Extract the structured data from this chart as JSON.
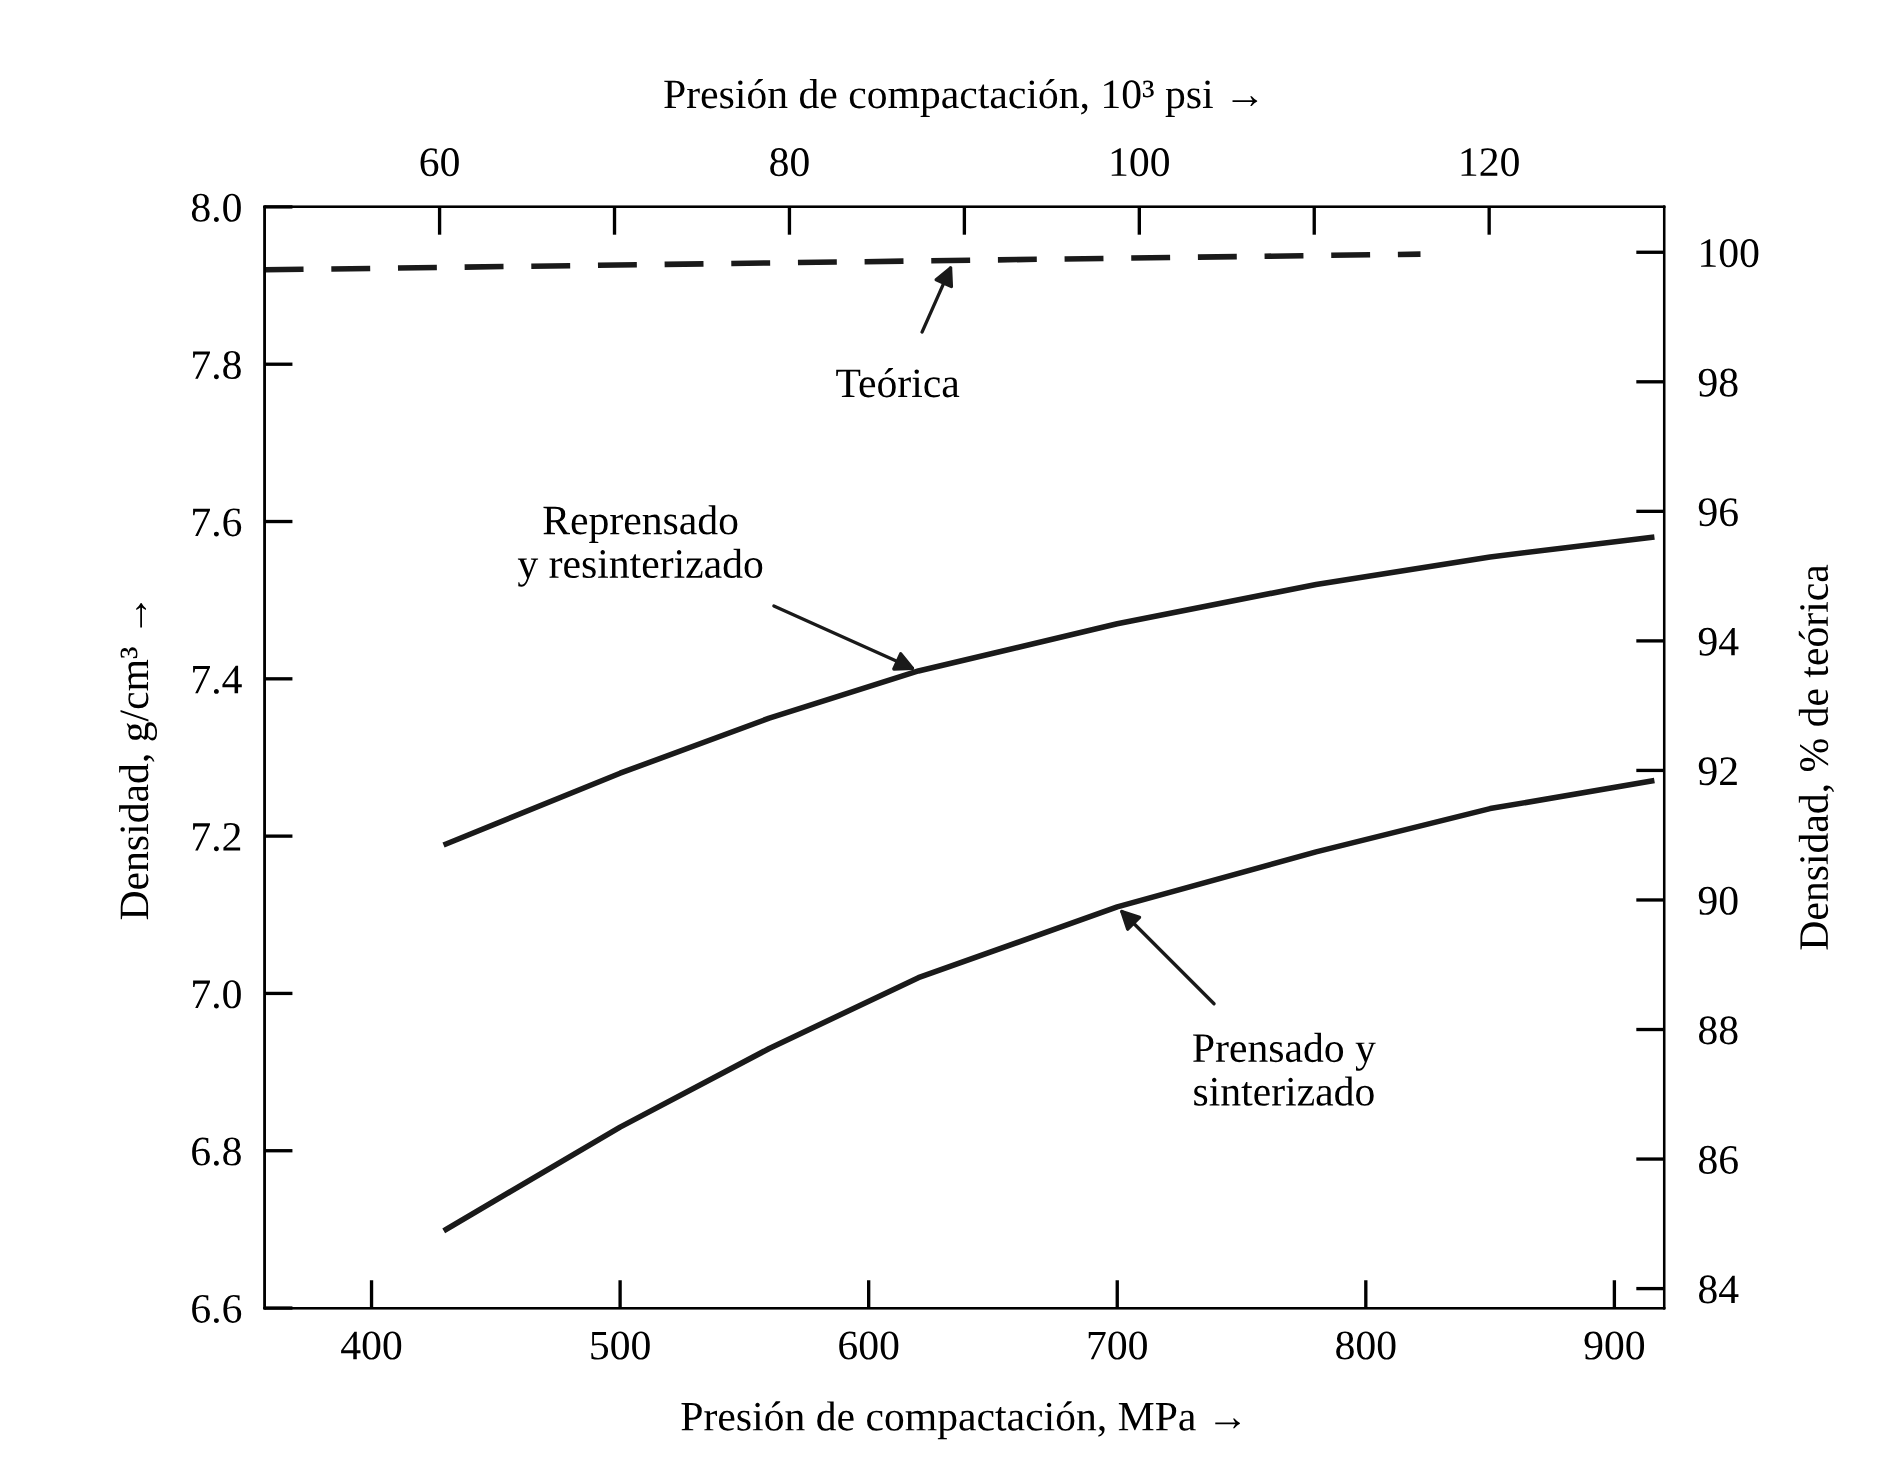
{
  "chart_data": {
    "type": "line",
    "xlabel": "Presión de compactación, MPa →",
    "x2label": "Presión de compactación, 10³ psi →",
    "ylabel": "Densidad, g/cm³ →",
    "y2label": "Densidad, % de teórica",
    "xlim": [
      357,
      920
    ],
    "xticks": [
      400,
      500,
      600,
      700,
      800,
      900
    ],
    "x2lim": [
      50,
      130
    ],
    "x2ticks": [
      {
        "value": 60,
        "label": "60"
      },
      {
        "value": 70,
        "label": null
      },
      {
        "value": 80,
        "label": "80"
      },
      {
        "value": 90,
        "label": null
      },
      {
        "value": 100,
        "label": "100"
      },
      {
        "value": 110,
        "label": null
      },
      {
        "value": 120,
        "label": "120"
      }
    ],
    "ylim": [
      6.6,
      8.0
    ],
    "yticks": [
      {
        "value": 6.6,
        "label": "6.6"
      },
      {
        "value": 6.8,
        "label": "6.8"
      },
      {
        "value": 7.0,
        "label": "7.0"
      },
      {
        "value": 7.2,
        "label": "7.2"
      },
      {
        "value": 7.4,
        "label": "7.4"
      },
      {
        "value": 7.6,
        "label": "7.6"
      },
      {
        "value": 7.8,
        "label": "7.8"
      },
      {
        "value": 8.0,
        "label": "8.0"
      }
    ],
    "y2lim": [
      83.7,
      100.7
    ],
    "y2ticks": [
      84,
      86,
      88,
      90,
      92,
      94,
      96,
      98,
      100
    ],
    "grid": false,
    "legend": false,
    "marker": "none",
    "series": [
      {
        "color": "#1a1a1a",
        "line_style": "dashed",
        "x": [
          357,
          822
        ],
        "values": [
          7.92,
          7.94
        ]
      },
      {
        "color": "#1a1a1a",
        "line_style": "solid",
        "x": [
          430,
          500,
          560,
          620,
          700,
          780,
          850,
          915
        ],
        "values": [
          7.19,
          7.28,
          7.35,
          7.41,
          7.47,
          7.52,
          7.555,
          7.58
        ]
      },
      {
        "color": "#1a1a1a",
        "line_style": "solid",
        "x": [
          430,
          500,
          560,
          620,
          700,
          780,
          850,
          915
        ],
        "values": [
          6.7,
          6.83,
          6.93,
          7.02,
          7.11,
          7.18,
          7.235,
          7.27
        ]
      }
    ],
    "annotations": [
      {
        "text": "Teórica",
        "x": 634,
        "y": 7.93
      },
      {
        "text": "Reprensado\ny resinterizado",
        "x": 620,
        "y": 7.41
      },
      {
        "text": "Prensado y\nsinterizado",
        "x": 700,
        "y": 7.11
      }
    ]
  }
}
